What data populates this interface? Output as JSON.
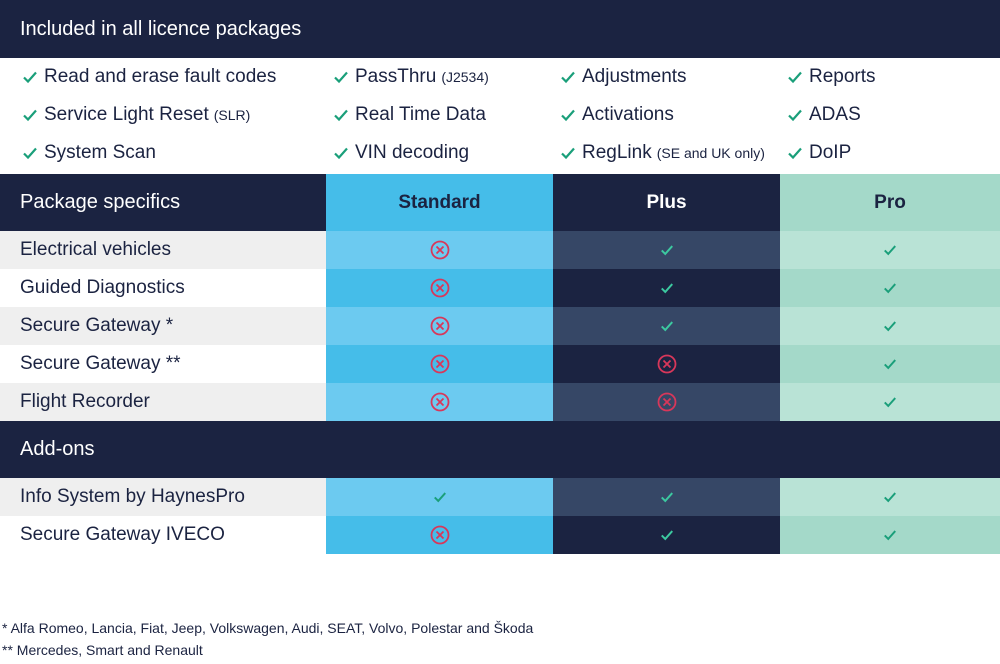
{
  "included": {
    "title": "Included in all licence packages",
    "rows": [
      [
        {
          "label": "Read and erase fault codes"
        },
        {
          "label": "PassThru",
          "note": "(J2534)"
        },
        {
          "label": "Adjustments"
        },
        {
          "label": "Reports"
        }
      ],
      [
        {
          "label": "Service Light Reset",
          "note": "(SLR)"
        },
        {
          "label": "Real Time Data"
        },
        {
          "label": "Activations"
        },
        {
          "label": "ADAS"
        }
      ],
      [
        {
          "label": "System Scan"
        },
        {
          "label": "VIN decoding"
        },
        {
          "label": "RegLink",
          "note": "(SE and UK only)"
        },
        {
          "label": "DoIP"
        }
      ]
    ]
  },
  "packages": [
    "Standard",
    "Plus",
    "Pro"
  ],
  "specifics": {
    "title": "Package specifics",
    "rows": [
      {
        "label": "Electrical vehicles",
        "values": [
          false,
          true,
          true
        ]
      },
      {
        "label": "Guided Diagnostics",
        "values": [
          false,
          true,
          true
        ]
      },
      {
        "label": "Secure Gateway *",
        "values": [
          false,
          true,
          true
        ]
      },
      {
        "label": "Secure Gateway **",
        "values": [
          false,
          false,
          true
        ]
      },
      {
        "label": "Flight Recorder",
        "values": [
          false,
          false,
          true
        ]
      }
    ]
  },
  "addons": {
    "title": "Add-ons",
    "rows": [
      {
        "label": "Info System by HaynesPro",
        "values": [
          true,
          true,
          true
        ]
      },
      {
        "label": "Secure Gateway IVECO",
        "values": [
          false,
          true,
          true
        ]
      }
    ]
  },
  "footnotes": [
    "*   Alfa Romeo, Lancia, Fiat, Jeep, Volkswagen, Audi, SEAT, Volvo, Polestar and Škoda",
    "** Mercedes, Smart and Renault"
  ]
}
